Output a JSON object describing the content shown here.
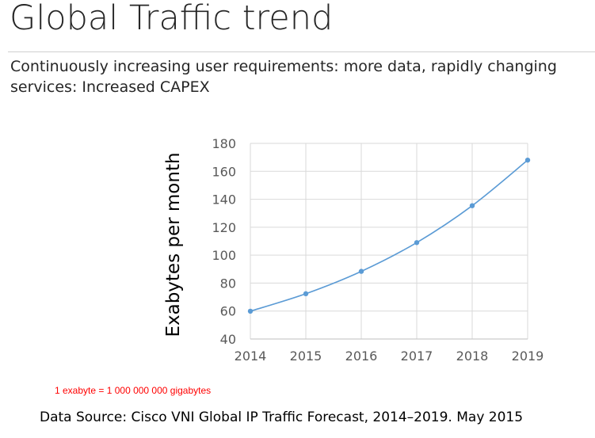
{
  "slide": {
    "title": "Global Traffic trend",
    "subtitle": "Continuously increasing user requirements: more data, rapidly changing services: Increased CAPEX",
    "note": "1 exabyte = 1 000 000 000 gigabytes",
    "source": "Data Source: Cisco VNI Global IP Traffic Forecast, 2014–2019. May 2015"
  },
  "chart_data": {
    "type": "line",
    "title": "",
    "xlabel": "",
    "ylabel": "Exabytes per month",
    "x": [
      "2014",
      "2015",
      "2016",
      "2017",
      "2018",
      "2019"
    ],
    "series": [
      {
        "values": [
          59.9,
          72.4,
          88.4,
          109.0,
          135.4,
          168.0
        ]
      }
    ],
    "ylim": [
      40,
      180
    ],
    "yticks": [
      40,
      60,
      80,
      100,
      120,
      140,
      160,
      180
    ],
    "grid": true,
    "legend": "none",
    "colors": {
      "line": "#5b9bd5",
      "grid": "#d9d9d9",
      "axis": "#bfbfbf"
    }
  }
}
